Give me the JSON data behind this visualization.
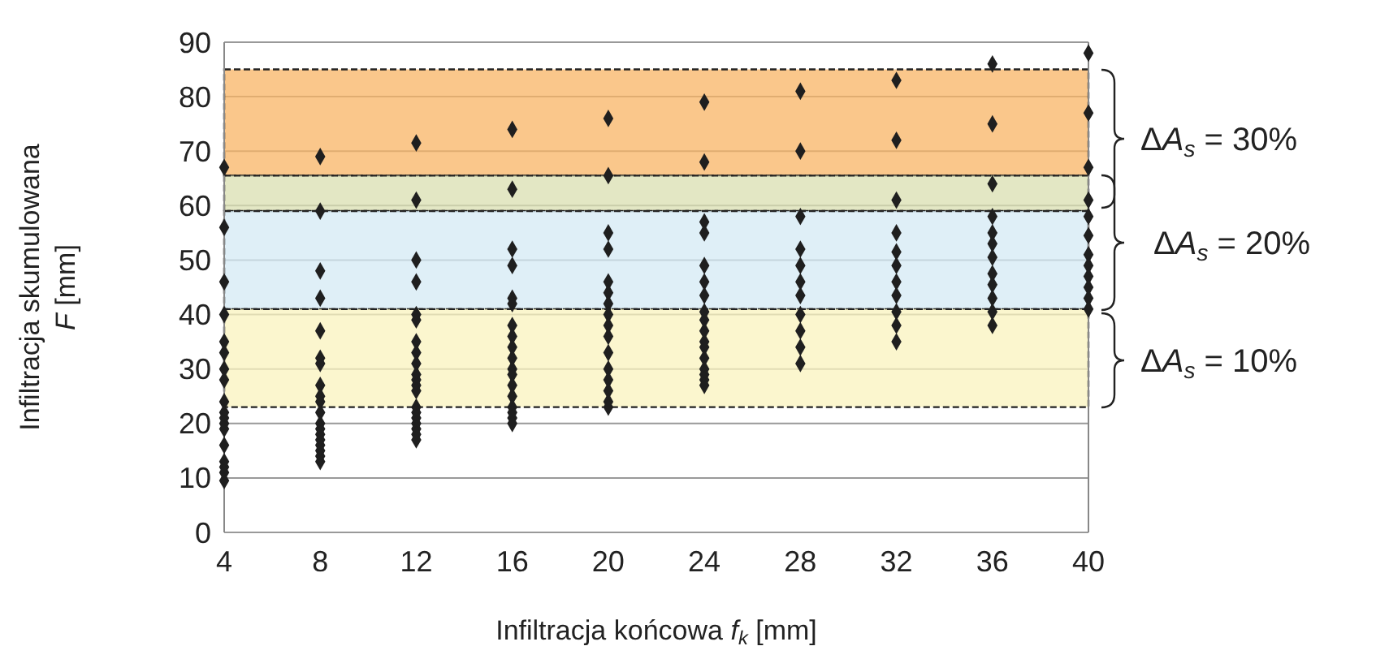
{
  "chart_data": {
    "type": "scatter",
    "xlabel": "Infiltracja końcowa f$_{k}$ [mm]",
    "ylabel": "Infiltracja skumulowana F [mm]",
    "xlim": [
      4,
      40
    ],
    "xticks": [
      4,
      8,
      12,
      16,
      20,
      24,
      28,
      32,
      36,
      40
    ],
    "ylim": [
      0,
      90
    ],
    "yticks": [
      0,
      10,
      20,
      30,
      40,
      50,
      60,
      70,
      80,
      90
    ],
    "grid": "y",
    "marker": "diamond",
    "series": [
      {
        "color": "#1f1f1f",
        "x": [
          4,
          4,
          4,
          4,
          4,
          4,
          4,
          4,
          4,
          4,
          4,
          4,
          4,
          4,
          4,
          4,
          4,
          4,
          8,
          8,
          8,
          8,
          8,
          8,
          8,
          8,
          8,
          8,
          8,
          8,
          8,
          8,
          8,
          8,
          8,
          8,
          8,
          12,
          12,
          12,
          12,
          12,
          12,
          12,
          12,
          12,
          12,
          12,
          12,
          12,
          12,
          12,
          12,
          12,
          12,
          12,
          12,
          16,
          16,
          16,
          16,
          16,
          16,
          16,
          16,
          16,
          16,
          16,
          16,
          16,
          16,
          16,
          16,
          16,
          16,
          20,
          20,
          20,
          20,
          20,
          20,
          20,
          20,
          20,
          20,
          20,
          20,
          20,
          20,
          20,
          20,
          24,
          24,
          24,
          24,
          24,
          24,
          24,
          24,
          24,
          24,
          24,
          24,
          24,
          24,
          24,
          24,
          24,
          28,
          28,
          28,
          28,
          28,
          28,
          28,
          28,
          28,
          28,
          28,
          32,
          32,
          32,
          32,
          32,
          32,
          32,
          32,
          32,
          32,
          32,
          36,
          36,
          36,
          36,
          36,
          36,
          36,
          36,
          36,
          36,
          36,
          36,
          40,
          40,
          40,
          40,
          40,
          40,
          40,
          40,
          40,
          40,
          40,
          40
        ],
        "values": [
          67,
          56,
          46,
          40,
          35,
          33,
          30,
          28,
          24,
          22,
          21,
          20,
          19,
          16,
          13,
          12,
          11,
          9.5,
          69,
          59,
          48,
          43,
          37,
          32,
          31,
          27,
          25,
          24,
          22,
          20,
          19,
          18,
          17,
          16,
          15,
          14,
          13,
          71.5,
          61,
          50,
          46,
          40,
          39,
          35,
          33,
          31,
          29,
          28,
          27,
          26,
          23,
          22,
          21,
          20,
          19,
          18,
          17,
          74,
          63,
          52,
          49,
          43,
          42,
          38,
          36,
          34,
          32,
          30,
          29,
          27,
          25,
          23,
          22,
          21,
          20,
          76,
          65.5,
          55,
          52,
          46,
          44,
          42,
          40,
          38,
          36,
          33,
          30,
          28,
          26,
          24,
          23,
          79,
          68,
          57,
          55,
          49,
          46,
          43.5,
          40.5,
          39,
          37,
          35,
          34,
          32,
          30,
          29,
          28,
          27,
          81,
          70,
          58,
          52,
          49,
          46,
          43.5,
          40,
          37,
          34,
          31,
          83,
          72,
          61,
          55,
          51.5,
          49,
          46,
          43.5,
          40.5,
          38,
          35,
          86,
          75,
          64,
          58,
          55,
          53,
          50.5,
          47.5,
          45.5,
          43,
          40.5,
          38,
          88,
          77,
          67,
          61,
          58,
          54.5,
          51,
          49,
          47,
          45,
          43,
          41
        ]
      }
    ],
    "bands": [
      {
        "axis": "y",
        "from": 65.5,
        "to": 85,
        "color": "#f8b464"
      },
      {
        "axis": "y",
        "from": 59,
        "to": 65.5,
        "color": "#d9dfb0"
      },
      {
        "axis": "y",
        "from": 41,
        "to": 59,
        "color": "#d4eaf4"
      },
      {
        "axis": "y",
        "from": 23,
        "to": 41,
        "color": "#faf3bd"
      }
    ],
    "annotations": [
      "ΔA$_{s}$ = 30%",
      "ΔA$_{s}$ = 20%",
      "ΔA$_{s}$ = 10%"
    ]
  }
}
